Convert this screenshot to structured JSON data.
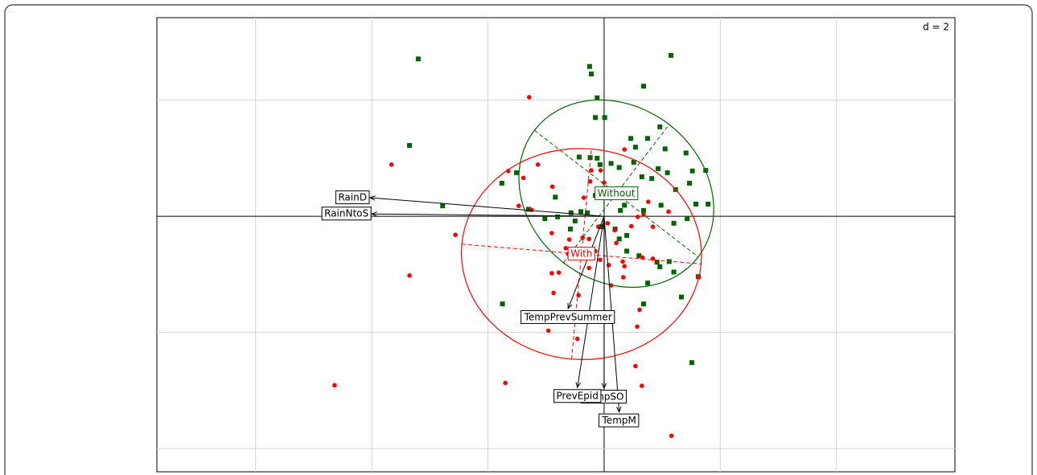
{
  "chart_data": {
    "type": "scatter",
    "annotation": "d = 2",
    "xlim": [
      -7.7,
      6.04
    ],
    "ylim": [
      -4.4,
      3.42
    ],
    "xticks": [
      -6,
      -4,
      -2,
      0,
      2,
      4
    ],
    "yticks": [
      -4,
      -2,
      0,
      2
    ],
    "grid": true,
    "series": [
      {
        "name": "Without",
        "color": "#006400",
        "marker": "square",
        "x": [
          -3.2,
          -0.25,
          -0.22,
          1.15,
          0.68,
          -0.12,
          -0.15,
          0.01,
          0.96,
          0.46,
          0.75,
          0.54,
          1.05,
          -3.35,
          1.41,
          -0.43,
          -0.24,
          -0.12,
          -0.07,
          0.12,
          0.26,
          0.51,
          0.93,
          1.09,
          1.52,
          1.75,
          0.65,
          0.82,
          1.47,
          -1.51,
          -1.76,
          1.23,
          -0.84,
          -0.15,
          0.35,
          0.98,
          1.58,
          1.79,
          -2.78,
          -1.3,
          0.28,
          0.68,
          1.43,
          1.2,
          -1.02,
          -0.8,
          -0.57,
          -0.4,
          -0.5,
          -0.04,
          0.39,
          0.19,
          0.39,
          0.26,
          0.91,
          0.96,
          1.2,
          1.12,
          1.62,
          0.75,
          1.33,
          -1.75,
          0.68,
          1.51,
          -0.58,
          0.6,
          -0.29
        ],
        "y": [
          2.71,
          2.58,
          2.45,
          2.77,
          2.24,
          2.04,
          1.7,
          1.7,
          1.54,
          1.34,
          1.34,
          1.19,
          1.16,
          1.22,
          1.09,
          1.02,
          1.01,
          1.0,
          0.89,
          0.91,
          0.84,
          0.93,
          0.82,
          0.75,
          0.78,
          0.79,
          0.68,
          0.65,
          0.57,
          0.75,
          0.57,
          0.46,
          0.33,
          0.36,
          0.19,
          0.19,
          0.21,
          0.21,
          0.18,
          0.12,
          0.1,
          0.1,
          -0.04,
          -0.12,
          -0.04,
          -0.01,
          0.06,
          0.08,
          -0.08,
          -0.18,
          -0.33,
          -0.22,
          -0.6,
          -0.39,
          -0.79,
          -0.87,
          -0.96,
          -0.78,
          -1.04,
          -1.15,
          -1.39,
          -1.51,
          -1.51,
          -2.52,
          -0.22,
          -0.68,
          0.06
        ],
        "ellipse": {
          "center": [
            0.21,
            0.39
          ],
          "axis1": [
            1.41,
            -1.09
          ],
          "axis2": [
            0.91,
            1.19
          ]
        }
      },
      {
        "name": "With",
        "color": "#ff0000",
        "marker": "circle",
        "x": [
          -1.29,
          -3.66,
          0.35,
          -1.65,
          -1.39,
          -1.14,
          -0.89,
          -0.22,
          -0.06,
          -0.24,
          0,
          -0.35,
          0.76,
          0.68,
          1.11,
          -1.47,
          -1.25,
          -2.56,
          -0.9,
          -0.6,
          -0.37,
          -0.26,
          -0.1,
          0.06,
          0.18,
          0.47,
          0.58,
          0.84,
          0.32,
          0.35,
          -0.62,
          -0.43,
          -0.15,
          -0.07,
          -0.9,
          -0.78,
          0.66,
          0.84,
          -3.35,
          -0.87,
          -0.44,
          0.33,
          0.61,
          -0.96,
          0.57,
          -0.46,
          0.54,
          0.65,
          -1.7,
          -4.64,
          1.16,
          -0.26,
          0.21,
          0.08,
          -0.66,
          1.63,
          0.12
        ],
        "y": [
          2.05,
          0.89,
          1.15,
          0.78,
          0.66,
          0.89,
          0.51,
          0.79,
          0.79,
          0.6,
          0.58,
          0.32,
          0.25,
          0.03,
          0.08,
          0.18,
          0.11,
          -0.32,
          -0.29,
          -0.4,
          -0.37,
          -0.39,
          -0.18,
          -0.12,
          -0.24,
          -0.17,
          -0.01,
          -0.18,
          -0.78,
          -0.86,
          -0.65,
          -0.61,
          -0.6,
          -0.75,
          -0.98,
          -0.97,
          -0.71,
          -0.73,
          -1.02,
          -1.32,
          -1.36,
          -1.05,
          -1.61,
          -1.97,
          -1.9,
          -2.11,
          -2.58,
          -2.92,
          -2.87,
          -2.91,
          -3.78,
          -0.89,
          -0.46,
          -0.84,
          -0.55,
          -1.05,
          -1.19
        ],
        "ellipse": {
          "center": [
            -0.39,
            -0.65
          ],
          "axis1": [
            2.06,
            -0.17
          ],
          "axis2": [
            0.17,
            1.81
          ]
        }
      }
    ],
    "arrows": [
      {
        "name": "RainD",
        "x": -4.03,
        "y": 0.32
      },
      {
        "name": "RainNtoS",
        "x": -4.0,
        "y": 0.04
      },
      {
        "name": "TempPrevSummer",
        "x": -0.62,
        "y": -1.59
      },
      {
        "name": "TempSO",
        "x": 0,
        "y": -2.96
      },
      {
        "name": "PrevEpid",
        "x": -0.46,
        "y": -2.95
      },
      {
        "name": "TempM",
        "x": 0.26,
        "y": -3.37
      }
    ]
  }
}
